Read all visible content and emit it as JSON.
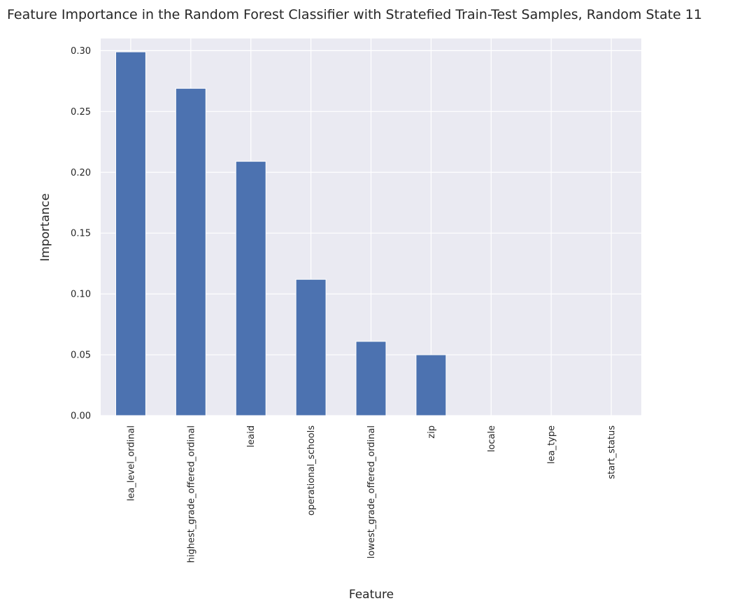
{
  "chart_data": {
    "type": "bar",
    "title": "Feature Importance in the Random Forest Classifier with Stratefied Train-Test Samples, Random State 11",
    "xlabel": "Feature",
    "ylabel": "Importance",
    "categories": [
      "lea_level_ordinal",
      "highest_grade_offered_ordinal",
      "leaid",
      "operational_schools",
      "lowest_grade_offered_ordinal",
      "zip",
      "locale",
      "lea_type",
      "start_status"
    ],
    "values": [
      0.299,
      0.269,
      0.209,
      0.112,
      0.061,
      0.05,
      0.0,
      0.0,
      0.0
    ],
    "ylim": [
      0,
      0.31
    ],
    "yticks": [
      "0.00",
      "0.05",
      "0.10",
      "0.15",
      "0.20",
      "0.25",
      "0.30"
    ],
    "grid": true,
    "legend": "none",
    "colors": {
      "bar": "#4c72b0",
      "plot_background": "#eaeaf2",
      "grid": "#ffffff"
    }
  }
}
